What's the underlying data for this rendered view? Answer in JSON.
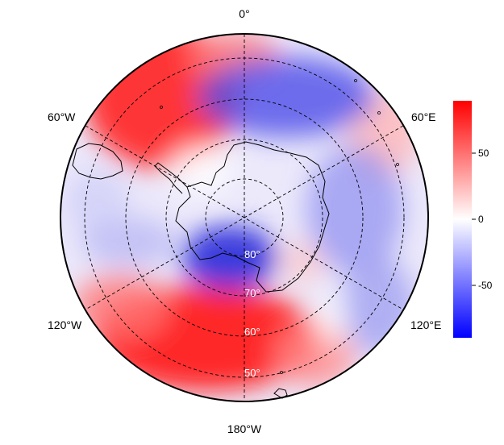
{
  "map": {
    "projection": "south-polar-stereographic",
    "longitude_labels": {
      "top": "0°",
      "top_right": "60°E",
      "bottom_right": "120°E",
      "bottom": "180°W",
      "bottom_left": "120°W",
      "top_left": "60°W"
    },
    "latitude_labels": [
      "80°",
      "70°",
      "60°",
      "50°"
    ],
    "field_colors": {
      "positive": "#ff0000",
      "neutral": "#ffffff",
      "negative": "#0000ff"
    }
  },
  "colorbar": {
    "tick_labels": [
      "50",
      "0",
      "-50"
    ],
    "tick_values": [
      50,
      0,
      -50
    ],
    "range": [
      -90,
      90
    ],
    "colors": [
      "#0000ff",
      "#ffffff",
      "#ff0000"
    ]
  }
}
